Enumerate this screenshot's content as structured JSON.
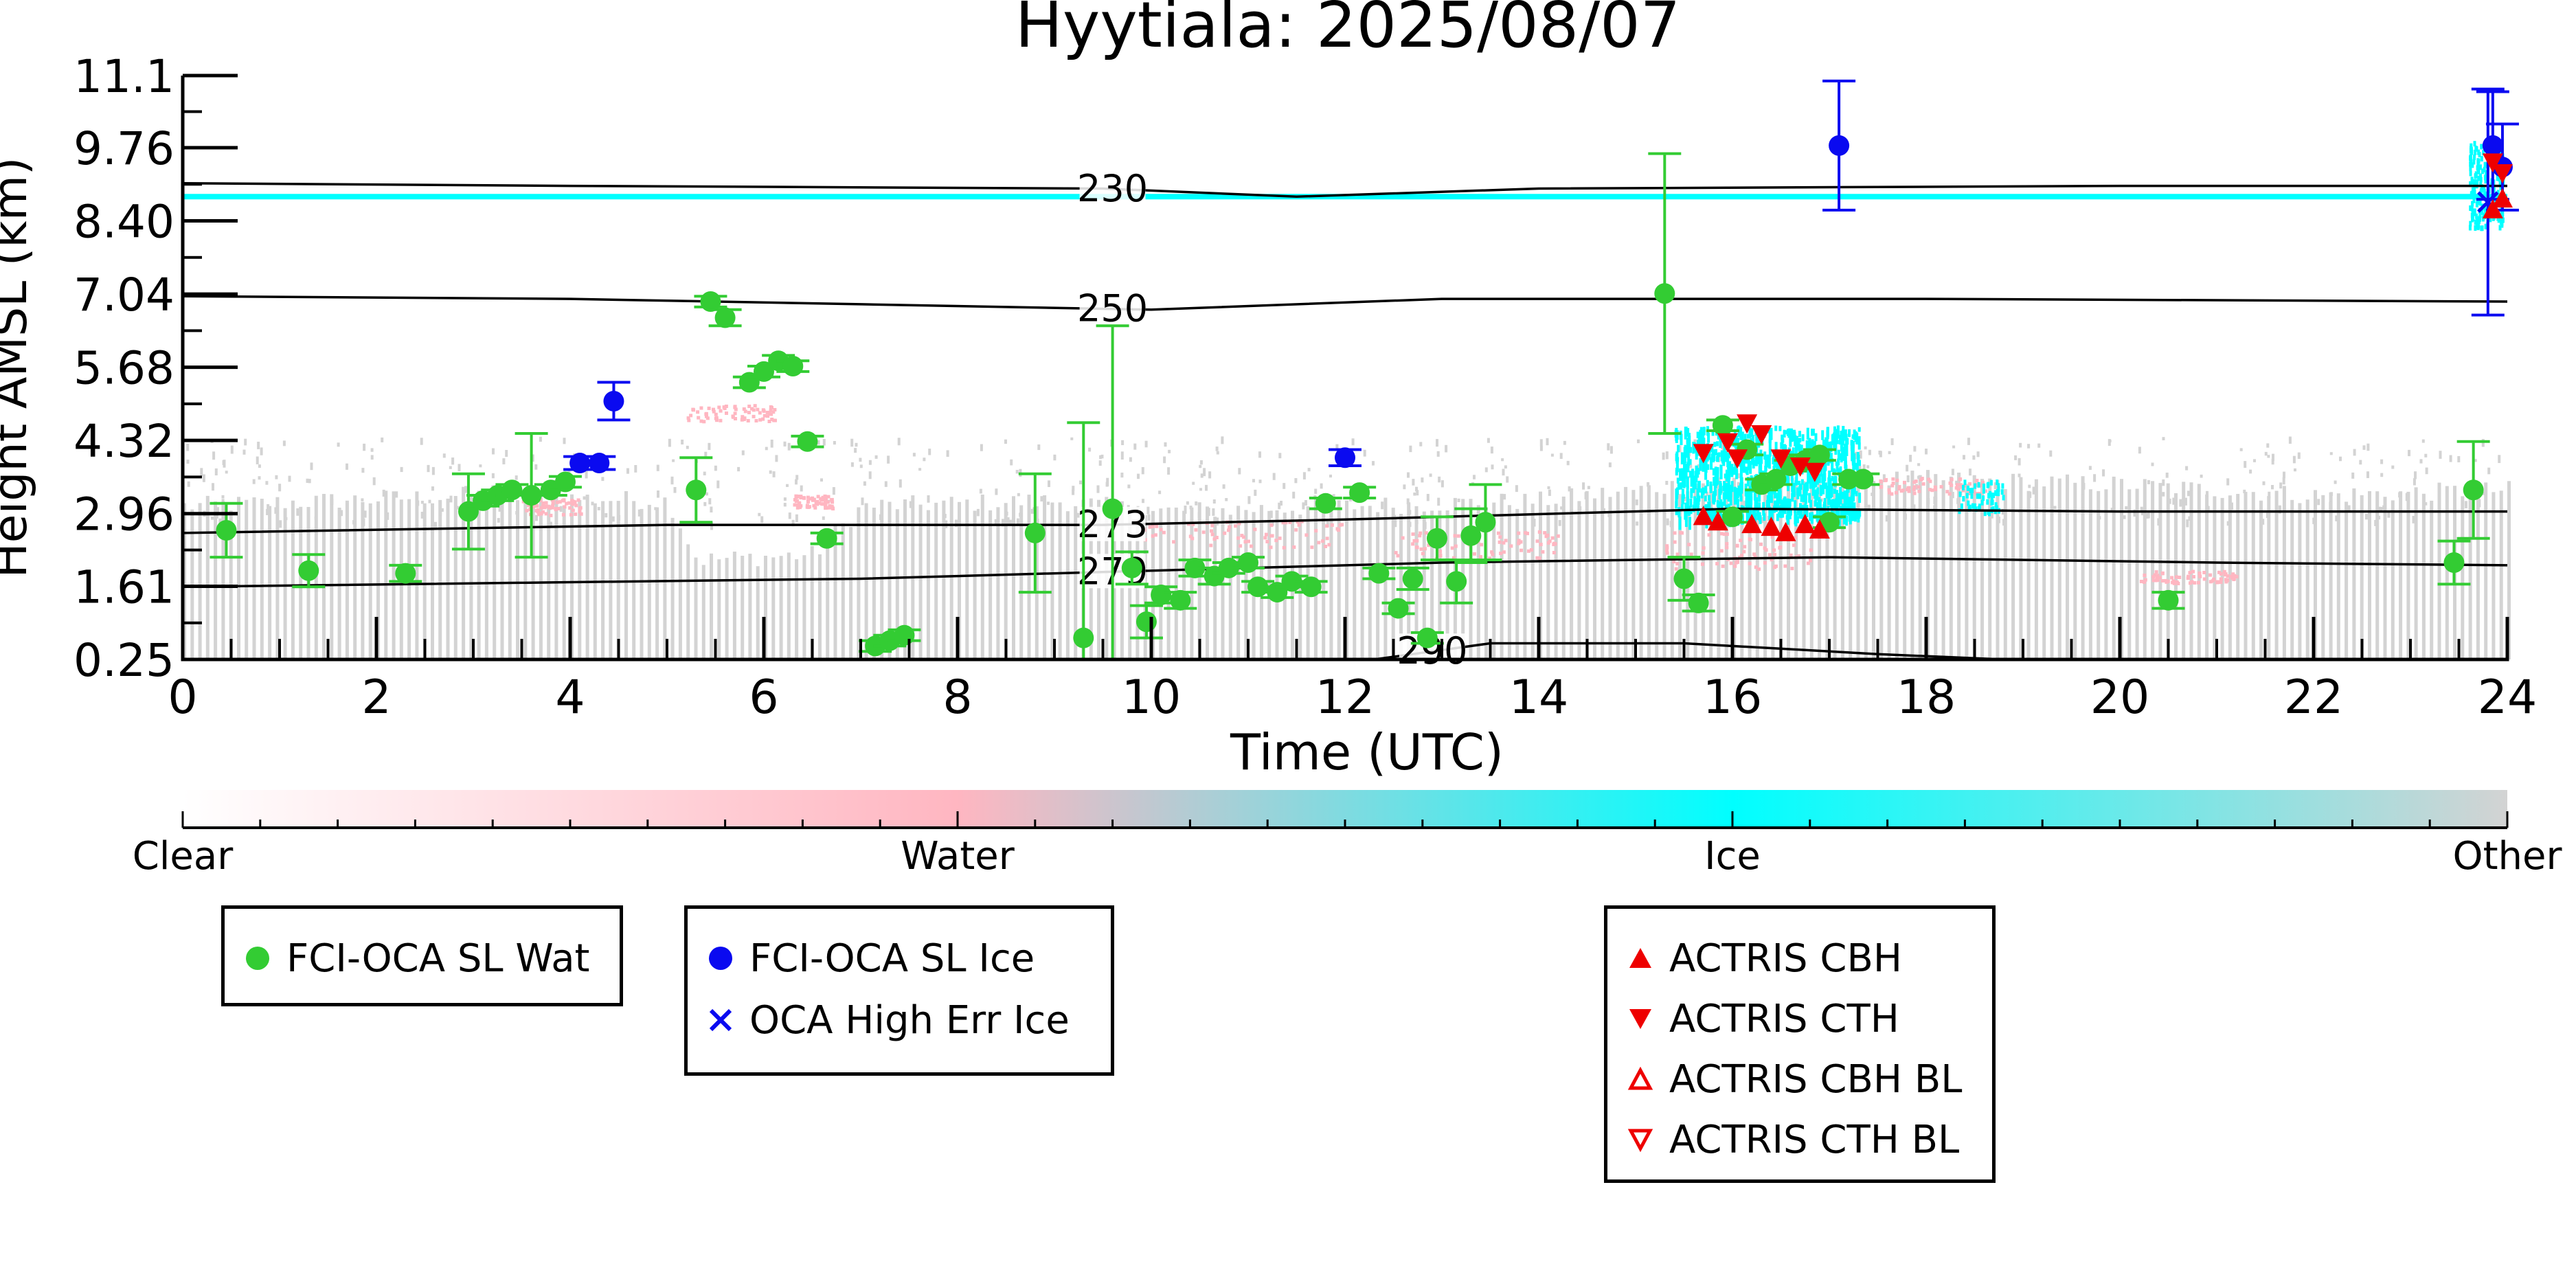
{
  "chart_data": {
    "type": "scatter",
    "title": "Hyytiala: 2025/08/07",
    "xlabel": "Time (UTC)",
    "ylabel": "Height AMSL (km)",
    "xlim": [
      0,
      24
    ],
    "ylim": [
      0.25,
      11.1
    ],
    "x_ticks": [
      "0",
      "2",
      "4",
      "6",
      "8",
      "10",
      "12",
      "14",
      "16",
      "18",
      "20",
      "22",
      "24"
    ],
    "y_ticks": [
      "0.25",
      "1.61",
      "2.96",
      "4.32",
      "5.68",
      "7.04",
      "8.40",
      "9.76",
      "11.1"
    ],
    "colorbar": {
      "labels": [
        "Clear",
        "Water",
        "Ice",
        "Other"
      ],
      "colors": [
        "#ffffff",
        "#ffb6c1",
        "#00ffff",
        "#d3d3d3"
      ]
    },
    "temperature_contours": [
      {
        "label": "230",
        "points": [
          [
            0,
            9.1
          ],
          [
            4,
            9.05
          ],
          [
            9.5,
            9.0
          ],
          [
            11.5,
            8.85
          ],
          [
            14,
            9.0
          ],
          [
            20,
            9.05
          ],
          [
            24,
            9.05
          ]
        ]
      },
      {
        "label": "250",
        "points": [
          [
            0,
            7.0
          ],
          [
            4,
            6.95
          ],
          [
            7,
            6.85
          ],
          [
            10,
            6.75
          ],
          [
            13,
            6.95
          ],
          [
            18,
            6.95
          ],
          [
            24,
            6.9
          ]
        ]
      },
      {
        "label": "273",
        "points": [
          [
            0,
            2.6
          ],
          [
            5,
            2.75
          ],
          [
            9.5,
            2.75
          ],
          [
            12,
            2.85
          ],
          [
            16,
            3.05
          ],
          [
            20,
            3.0
          ],
          [
            24,
            3.0
          ]
        ]
      },
      {
        "label": "279",
        "points": [
          [
            0,
            1.6
          ],
          [
            7,
            1.75
          ],
          [
            10,
            1.9
          ],
          [
            13,
            2.05
          ],
          [
            17,
            2.15
          ],
          [
            21,
            2.05
          ],
          [
            24,
            2.0
          ]
        ]
      },
      {
        "label": "290",
        "points": [
          [
            12.3,
            0.25
          ],
          [
            13.5,
            0.55
          ],
          [
            15.5,
            0.55
          ],
          [
            17.5,
            0.35
          ],
          [
            18.8,
            0.25
          ]
        ]
      }
    ],
    "series": [
      {
        "name": "FCI-OCA SL Wat",
        "color": "#33cc33",
        "marker": "circle",
        "points": [
          {
            "x": 0.45,
            "y": 2.65,
            "err": 0.5
          },
          {
            "x": 1.3,
            "y": 1.9,
            "err": 0.3
          },
          {
            "x": 2.3,
            "y": 1.85,
            "err": 0.15
          },
          {
            "x": 2.95,
            "y": 3.0,
            "err": 0.7
          },
          {
            "x": 3.1,
            "y": 3.2,
            "err": 0.1
          },
          {
            "x": 3.25,
            "y": 3.3,
            "err": 0.1
          },
          {
            "x": 3.4,
            "y": 3.4,
            "err": 0.1
          },
          {
            "x": 3.6,
            "y": 3.3,
            "err": 1.15
          },
          {
            "x": 3.8,
            "y": 3.4,
            "err": 0.1
          },
          {
            "x": 3.95,
            "y": 3.55,
            "err": 0.1
          },
          {
            "x": 5.3,
            "y": 3.4,
            "err": 0.6
          },
          {
            "x": 5.45,
            "y": 6.9,
            "err": 0.1
          },
          {
            "x": 5.6,
            "y": 6.6,
            "err": 0.15
          },
          {
            "x": 5.85,
            "y": 5.4,
            "err": 0.1
          },
          {
            "x": 6.0,
            "y": 5.6,
            "err": 0.1
          },
          {
            "x": 6.15,
            "y": 5.8,
            "err": 0.1
          },
          {
            "x": 6.3,
            "y": 5.7,
            "err": 0.1
          },
          {
            "x": 6.45,
            "y": 4.3,
            "err": 0.1
          },
          {
            "x": 6.65,
            "y": 2.5,
            "err": 0.1
          },
          {
            "x": 7.15,
            "y": 0.5,
            "err": 0.1
          },
          {
            "x": 7.3,
            "y": 0.6,
            "err": 0.1
          },
          {
            "x": 7.45,
            "y": 0.7,
            "err": 0.1
          },
          {
            "x": 8.8,
            "y": 2.6,
            "err": 1.1
          },
          {
            "x": 9.3,
            "y": 0.65,
            "err": 4.0
          },
          {
            "x": 9.6,
            "y": 3.05,
            "err": 3.4
          },
          {
            "x": 9.8,
            "y": 1.95,
            "err": 0.3
          },
          {
            "x": 9.95,
            "y": 0.95,
            "err": 0.3
          },
          {
            "x": 10.1,
            "y": 1.45,
            "err": 0.15
          },
          {
            "x": 10.3,
            "y": 1.35,
            "err": 0.15
          },
          {
            "x": 10.45,
            "y": 1.95,
            "err": 0.15
          },
          {
            "x": 10.65,
            "y": 1.8,
            "err": 0.15
          },
          {
            "x": 10.8,
            "y": 1.95,
            "err": 0.1
          },
          {
            "x": 11.0,
            "y": 2.05,
            "err": 0.1
          },
          {
            "x": 11.1,
            "y": 1.6,
            "err": 0.1
          },
          {
            "x": 11.3,
            "y": 1.5,
            "err": 0.1
          },
          {
            "x": 11.45,
            "y": 1.7,
            "err": 0.1
          },
          {
            "x": 11.65,
            "y": 1.6,
            "err": 0.1
          },
          {
            "x": 11.8,
            "y": 3.15,
            "err": 0.1
          },
          {
            "x": 12.15,
            "y": 3.35,
            "err": 0.1
          },
          {
            "x": 12.35,
            "y": 1.85,
            "err": 0.1
          },
          {
            "x": 12.55,
            "y": 1.2,
            "err": 0.1
          },
          {
            "x": 12.7,
            "y": 1.75,
            "err": 0.2
          },
          {
            "x": 12.85,
            "y": 0.65,
            "err": 0.1
          },
          {
            "x": 12.95,
            "y": 2.5,
            "err": 0.4
          },
          {
            "x": 13.15,
            "y": 1.7,
            "err": 0.4
          },
          {
            "x": 13.3,
            "y": 2.55,
            "err": 0.5
          },
          {
            "x": 13.45,
            "y": 2.8,
            "err": 0.7
          },
          {
            "x": 15.3,
            "y": 7.05,
            "err": 2.6
          },
          {
            "x": 15.5,
            "y": 1.75,
            "err": 0.4
          },
          {
            "x": 15.65,
            "y": 1.3,
            "err": 0.15
          },
          {
            "x": 15.9,
            "y": 4.6,
            "err": 0.1
          },
          {
            "x": 16.0,
            "y": 2.9,
            "err": 0.1
          },
          {
            "x": 16.15,
            "y": 4.15,
            "err": 0.1
          },
          {
            "x": 16.3,
            "y": 3.5,
            "err": 0.1
          },
          {
            "x": 16.45,
            "y": 3.6,
            "err": 0.1
          },
          {
            "x": 16.6,
            "y": 3.85,
            "err": 0.1
          },
          {
            "x": 16.75,
            "y": 3.95,
            "err": 0.1
          },
          {
            "x": 16.9,
            "y": 4.05,
            "err": 0.1
          },
          {
            "x": 17.0,
            "y": 2.8,
            "err": 0.1
          },
          {
            "x": 17.2,
            "y": 3.6,
            "err": 0.1
          },
          {
            "x": 17.35,
            "y": 3.6,
            "err": 0.1
          },
          {
            "x": 20.5,
            "y": 1.35,
            "err": 0.15
          },
          {
            "x": 23.45,
            "y": 2.05,
            "err": 0.4
          },
          {
            "x": 23.65,
            "y": 3.4,
            "err": 0.9
          }
        ]
      },
      {
        "name": "FCI-OCA SL Ice",
        "color": "#0a0af0",
        "marker": "circle",
        "points": [
          {
            "x": 4.1,
            "y": 3.9,
            "err": 0.12
          },
          {
            "x": 4.3,
            "y": 3.9,
            "err": 0.12
          },
          {
            "x": 4.45,
            "y": 5.05,
            "err": 0.35
          },
          {
            "x": 12.0,
            "y": 4.0,
            "err": 0.15
          },
          {
            "x": 17.1,
            "y": 9.8,
            "err": 1.2
          },
          {
            "x": 23.85,
            "y": 9.8,
            "err": 1.0
          },
          {
            "x": 23.95,
            "y": 9.4,
            "err": 0.8
          }
        ]
      },
      {
        "name": "OCA High Err Ice",
        "color": "#0a0af0",
        "marker": "x",
        "points": [
          {
            "x": 23.8,
            "y": 8.75,
            "err": 2.1
          }
        ]
      },
      {
        "name": "ACTRIS CBH",
        "color": "#ee0000",
        "marker": "triangle-up",
        "points": [
          {
            "x": 15.7,
            "y": 2.9
          },
          {
            "x": 15.85,
            "y": 2.8
          },
          {
            "x": 16.2,
            "y": 2.75
          },
          {
            "x": 16.4,
            "y": 2.7
          },
          {
            "x": 16.55,
            "y": 2.6
          },
          {
            "x": 16.75,
            "y": 2.75
          },
          {
            "x": 16.9,
            "y": 2.65
          },
          {
            "x": 23.85,
            "y": 8.6
          },
          {
            "x": 23.95,
            "y": 8.8
          }
        ]
      },
      {
        "name": "ACTRIS CTH",
        "color": "#ee0000",
        "marker": "triangle-down",
        "points": [
          {
            "x": 15.7,
            "y": 4.1
          },
          {
            "x": 15.95,
            "y": 4.3
          },
          {
            "x": 16.05,
            "y": 4.0
          },
          {
            "x": 16.15,
            "y": 4.65
          },
          {
            "x": 16.3,
            "y": 4.45
          },
          {
            "x": 16.5,
            "y": 4.0
          },
          {
            "x": 16.7,
            "y": 3.85
          },
          {
            "x": 16.85,
            "y": 3.75
          },
          {
            "x": 23.85,
            "y": 9.5
          },
          {
            "x": 23.95,
            "y": 9.3
          }
        ]
      },
      {
        "name": "ACTRIS CBH BL",
        "color": "#ee0000",
        "marker": "triangle-up-open",
        "points": []
      },
      {
        "name": "ACTRIS CTH BL",
        "color": "#ee0000",
        "marker": "triangle-down-open",
        "points": []
      }
    ]
  }
}
